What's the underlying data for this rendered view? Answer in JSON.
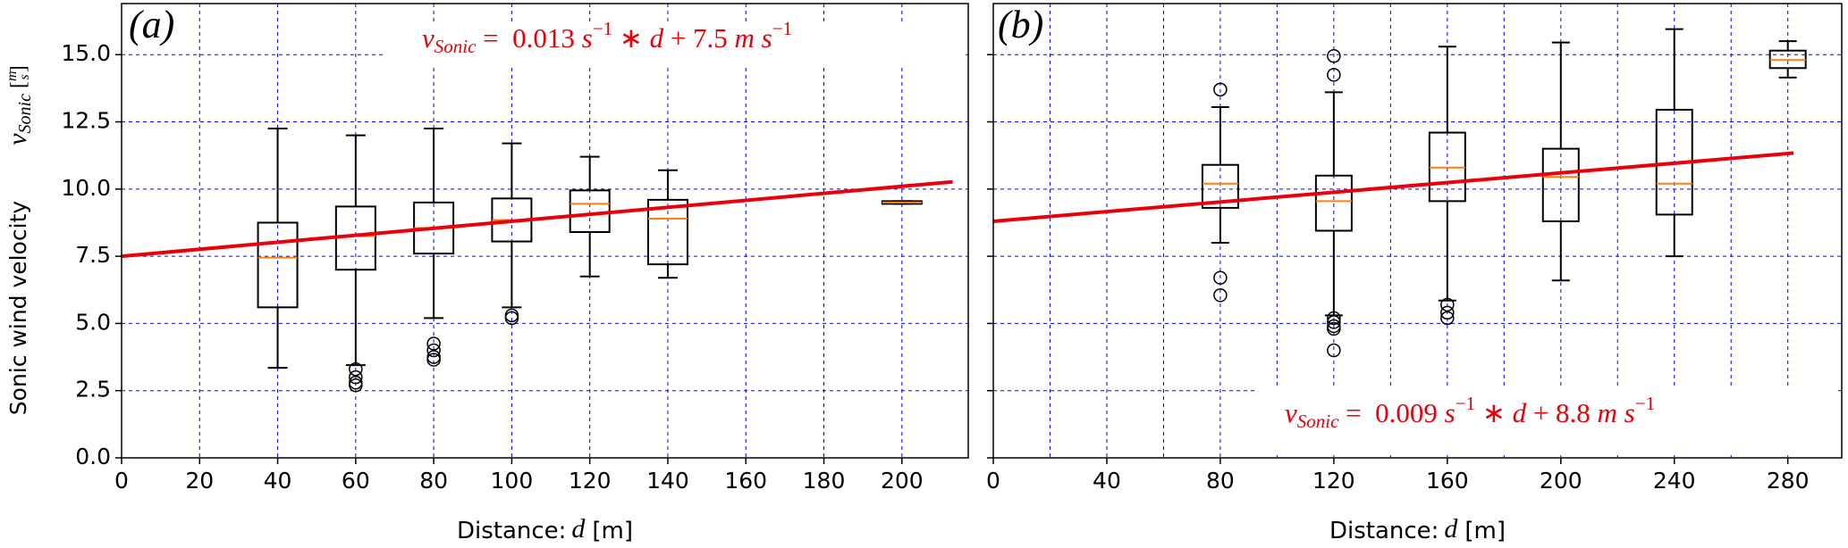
{
  "chart_data": [
    {
      "type": "box",
      "panel_label": "(a)",
      "ylabel": "Sonic wind velocity",
      "ylabel_symbol": [
        "v",
        "Sonic",
        "[",
        "m",
        "s",
        "]"
      ],
      "xlabel": [
        "Distance:",
        "d",
        "[m]"
      ],
      "xlim": [
        0,
        217
      ],
      "ylim": [
        0,
        16.9
      ],
      "xticks": [
        0,
        20,
        40,
        60,
        80,
        100,
        120,
        140,
        160,
        180,
        200
      ],
      "yticks": [
        {
          "value": 0,
          "label": "0.0"
        },
        2.5,
        {
          "value": 5,
          "label": "5.0"
        },
        7.5,
        {
          "value": 10,
          "label": "10.0"
        },
        12.5,
        {
          "value": 15,
          "label": "15.0"
        }
      ],
      "grid": true,
      "x": [
        40,
        60,
        80,
        100,
        120,
        140,
        200
      ],
      "boxes": [
        {
          "whislo": 3.35,
          "q1": 5.6,
          "med": 7.45,
          "q3": 8.75,
          "whishi": 12.25,
          "fliers": []
        },
        {
          "whislo": 3.45,
          "q1": 7.0,
          "med": 8.25,
          "q3": 9.35,
          "whishi": 12.0,
          "fliers": [
            3.3,
            3.0,
            2.8,
            2.7
          ]
        },
        {
          "whislo": 5.2,
          "q1": 7.6,
          "med": 8.55,
          "q3": 9.5,
          "whishi": 12.25,
          "fliers": [
            4.25,
            4.0,
            3.75,
            3.65
          ]
        },
        {
          "whislo": 5.6,
          "q1": 8.05,
          "med": 8.85,
          "q3": 9.65,
          "whishi": 11.7,
          "fliers": [
            5.3,
            5.2
          ]
        },
        {
          "whislo": 6.75,
          "q1": 8.4,
          "med": 9.45,
          "q3": 9.95,
          "whishi": 11.2,
          "fliers": []
        },
        {
          "whislo": 6.7,
          "q1": 7.2,
          "med": 8.9,
          "q3": 9.6,
          "whishi": 10.7,
          "fliers": []
        },
        {
          "whislo": 9.45,
          "q1": 9.45,
          "med": 9.5,
          "q3": 9.55,
          "whishi": 9.55,
          "fliers": []
        }
      ],
      "box_color": "#000000",
      "median_color": "#ff7f0e",
      "fit": {
        "slope": 0.013,
        "intercept": 7.5,
        "xrange": [
          0,
          213
        ],
        "color": "#e8000b"
      },
      "annotation": [
        "v",
        "Sonic",
        " =  0.013 ",
        "s",
        "−1",
        " ∗ ",
        "d",
        " + 7.5 ",
        "m s",
        "−1"
      ]
    },
    {
      "type": "box",
      "panel_label": "(b)",
      "xlabel": [
        "Distance:",
        "d",
        "[m]"
      ],
      "xlim": [
        0,
        299
      ],
      "ylim": [
        0,
        16.9
      ],
      "xticks": [
        0,
        40,
        80,
        120,
        160,
        200,
        240,
        280
      ],
      "xgrid_minor": [
        20,
        60,
        100,
        140,
        180,
        220,
        260
      ],
      "grid": true,
      "x": [
        80,
        120,
        160,
        200,
        240,
        280
      ],
      "boxes": [
        {
          "whislo": 8.0,
          "q1": 9.3,
          "med": 10.2,
          "q3": 10.9,
          "whishi": 13.05,
          "fliers": [
            13.7,
            6.7,
            6.05
          ]
        },
        {
          "whislo": 5.3,
          "q1": 8.45,
          "med": 9.55,
          "q3": 10.5,
          "whishi": 13.6,
          "fliers": [
            14.95,
            14.25,
            5.2,
            5.05,
            4.9,
            4.8,
            4.0
          ]
        },
        {
          "whislo": 5.85,
          "q1": 9.55,
          "med": 10.8,
          "q3": 12.1,
          "whishi": 15.3,
          "fliers": [
            5.7,
            5.4,
            5.2
          ]
        },
        {
          "whislo": 6.6,
          "q1": 8.8,
          "med": 10.45,
          "q3": 11.5,
          "whishi": 15.45,
          "fliers": []
        },
        {
          "whislo": 7.5,
          "q1": 9.05,
          "med": 10.2,
          "q3": 12.95,
          "whishi": 15.95,
          "fliers": []
        },
        {
          "whislo": 14.15,
          "q1": 14.5,
          "med": 14.8,
          "q3": 15.15,
          "whishi": 15.5,
          "fliers": []
        }
      ],
      "box_color": "#000000",
      "median_color": "#ff7f0e",
      "fit": {
        "slope": 0.009,
        "intercept": 8.8,
        "xrange": [
          0,
          282
        ],
        "color": "#e8000b"
      },
      "annotation": [
        "v",
        "Sonic",
        " =  0.009 ",
        "s",
        "−1",
        " ∗ ",
        "d",
        " + 8.8 ",
        "m s",
        "−1"
      ]
    }
  ]
}
